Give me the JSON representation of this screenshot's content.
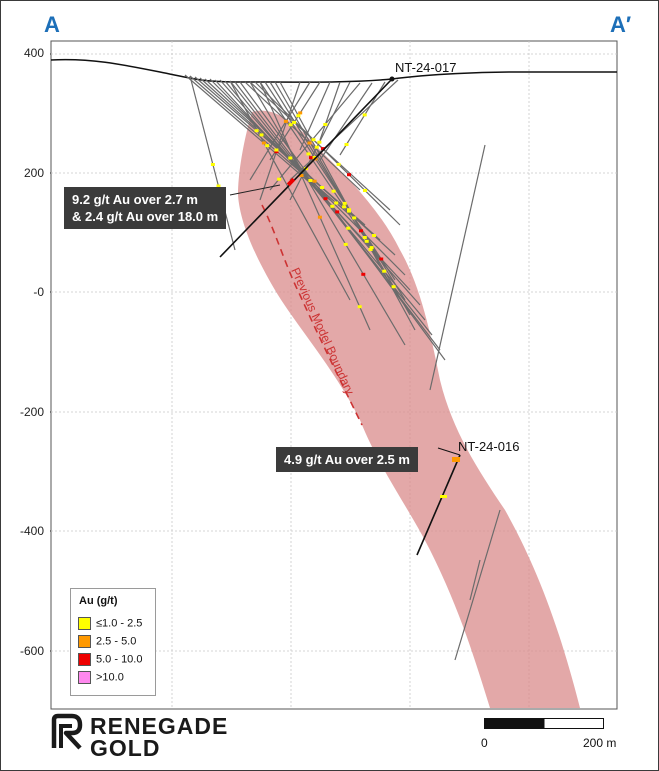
{
  "section": {
    "start_label": "A",
    "end_label": "A′"
  },
  "y_axis": {
    "ticks": [
      "400",
      "200",
      "-0",
      "-200",
      "-400",
      "-600"
    ]
  },
  "colors": {
    "section_letters": "#1d6fb8",
    "mineralized_zone": "#d98b8b",
    "previous_boundary": "#cc3333",
    "drill_traces": "#6b6b6b",
    "highlighted_holes": "#111111",
    "callout_background": "#3b3b3b"
  },
  "drill_holes": [
    {
      "id": "nt-24-017",
      "label": "NT-24-017"
    },
    {
      "id": "nt-24-016",
      "label": "NT-24-016"
    }
  ],
  "callouts": [
    {
      "line1": "9.2 g/t Au over 2.7 m",
      "line2": "& 2.4 g/t Au over 18.0 m"
    },
    {
      "line1": "4.9 g/t Au over 2.5 m"
    }
  ],
  "annotation": {
    "previous_model_boundary": "Previous Model Boundary"
  },
  "legend": {
    "title": "Au (g/t)",
    "items": [
      {
        "label": "≤1.0 - 2.5",
        "color": "#ffff00"
      },
      {
        "label": "2.5 - 5.0",
        "color": "#ff9900"
      },
      {
        "label": "5.0 - 10.0",
        "color": "#ee0000"
      },
      {
        "label": ">10.0",
        "color": "#ff88ee"
      }
    ]
  },
  "scale_bar": {
    "start_label": "0",
    "end_label": "200 m"
  },
  "logo": {
    "line1": "RENEGADE",
    "line2": "GOLD"
  }
}
